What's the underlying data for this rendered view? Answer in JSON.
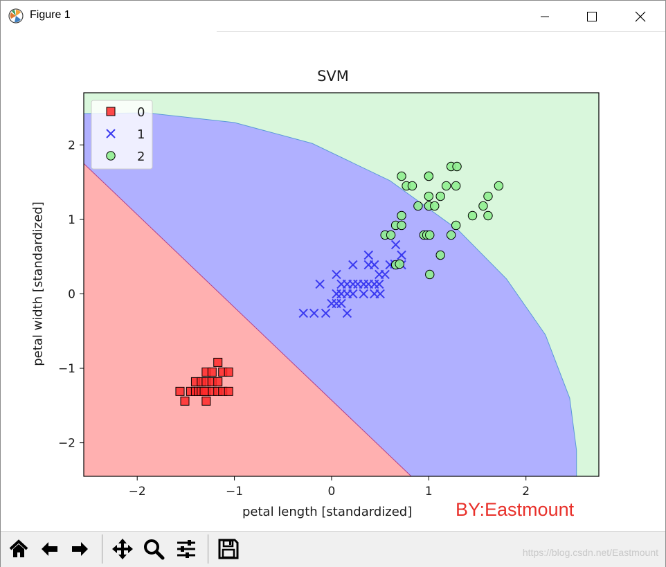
{
  "window": {
    "title": "Figure 1",
    "controls": [
      {
        "name": "minimize",
        "icon": "minimize-icon"
      },
      {
        "name": "maximize",
        "icon": "maximize-icon"
      },
      {
        "name": "close",
        "icon": "close-icon"
      }
    ]
  },
  "toolbar": {
    "buttons": [
      {
        "name": "home",
        "icon": "home-icon"
      },
      {
        "name": "back",
        "icon": "arrow-left-icon"
      },
      {
        "name": "forward",
        "icon": "arrow-right-icon"
      },
      {
        "name": "pan",
        "icon": "move-icon"
      },
      {
        "name": "zoom",
        "icon": "magnifier-icon"
      },
      {
        "name": "configure-subplots",
        "icon": "sliders-icon"
      },
      {
        "name": "save",
        "icon": "floppy-disk-icon"
      }
    ]
  },
  "watermarks": {
    "author": "BY:Eastmount",
    "url": "https://blog.csdn.net/Eastmount"
  },
  "chart_data": {
    "type": "scatter",
    "title": "SVM",
    "xlabel": "petal length [standardized]",
    "ylabel": "petal width [standardized]",
    "xlim": [
      -2.55,
      2.75
    ],
    "ylim": [
      -2.45,
      2.7
    ],
    "xticks": [
      -2,
      -1,
      0,
      1,
      2
    ],
    "xtick_labels": [
      "−2",
      "−1",
      "0",
      "1",
      "2"
    ],
    "yticks": [
      -2,
      -1,
      0,
      1,
      2
    ],
    "ytick_labels": [
      "−2",
      "−1",
      "0",
      "1",
      "2"
    ],
    "legend": {
      "location": "top-left",
      "entries": [
        "0",
        "1",
        "2"
      ]
    },
    "colors": {
      "class0": "#ff2a2a",
      "class1": "#3a3af0",
      "class2": "#90ee90",
      "region0": "#ffb0b0",
      "region1": "#b0b0ff",
      "region2": "#d9f7dc"
    },
    "decision_regions": [
      {
        "class": "0",
        "boundary": [
          [
            -2.55,
            1.75
          ],
          [
            0.82,
            -2.45
          ]
        ]
      },
      {
        "class": "1",
        "boundary": [
          [
            -2.55,
            2.42
          ],
          [
            -1.9,
            2.43
          ],
          [
            -1.0,
            2.3
          ],
          [
            -0.2,
            2.02
          ],
          [
            0.6,
            1.52
          ],
          [
            1.3,
            0.86
          ],
          [
            1.8,
            0.2
          ],
          [
            2.2,
            -0.55
          ],
          [
            2.45,
            -1.4
          ],
          [
            2.52,
            -2.1
          ],
          [
            2.52,
            -2.45
          ]
        ]
      },
      {
        "class": "2",
        "boundary": "remainder"
      }
    ],
    "series": [
      {
        "name": "0",
        "marker": "square",
        "points": [
          [
            -1.56,
            -1.31
          ],
          [
            -1.51,
            -1.44
          ],
          [
            -1.45,
            -1.31
          ],
          [
            -1.4,
            -1.31
          ],
          [
            -1.4,
            -1.18
          ],
          [
            -1.37,
            -1.31
          ],
          [
            -1.34,
            -1.31
          ],
          [
            -1.34,
            -1.18
          ],
          [
            -1.29,
            -1.31
          ],
          [
            -1.29,
            -1.18
          ],
          [
            -1.29,
            -1.05
          ],
          [
            -1.29,
            -1.44
          ],
          [
            -1.23,
            -1.31
          ],
          [
            -1.23,
            -1.18
          ],
          [
            -1.23,
            -1.05
          ],
          [
            -1.17,
            -1.31
          ],
          [
            -1.17,
            -1.18
          ],
          [
            -1.12,
            -1.31
          ],
          [
            -1.12,
            -1.05
          ],
          [
            -1.17,
            -0.92
          ],
          [
            -1.06,
            -1.31
          ],
          [
            -1.06,
            -1.05
          ],
          [
            -1.31,
            -1.31
          ]
        ]
      },
      {
        "name": "1",
        "marker": "x",
        "points": [
          [
            -0.29,
            -0.26
          ],
          [
            -0.18,
            -0.26
          ],
          [
            -0.12,
            0.13
          ],
          [
            -0.06,
            -0.26
          ],
          [
            0.0,
            -0.13
          ],
          [
            0.05,
            -0.13
          ],
          [
            0.05,
            0.0
          ],
          [
            0.05,
            0.26
          ],
          [
            0.1,
            -0.13
          ],
          [
            0.1,
            0.0
          ],
          [
            0.1,
            0.13
          ],
          [
            0.16,
            0.13
          ],
          [
            0.16,
            0.0
          ],
          [
            0.16,
            -0.26
          ],
          [
            0.22,
            0.13
          ],
          [
            0.22,
            0.39
          ],
          [
            0.22,
            0.0
          ],
          [
            0.27,
            0.13
          ],
          [
            0.33,
            0.13
          ],
          [
            0.33,
            0.0
          ],
          [
            0.38,
            0.13
          ],
          [
            0.38,
            0.39
          ],
          [
            0.38,
            0.52
          ],
          [
            0.44,
            0.13
          ],
          [
            0.44,
            0.0
          ],
          [
            0.44,
            0.39
          ],
          [
            0.49,
            0.13
          ],
          [
            0.49,
            0.26
          ],
          [
            0.5,
            0.0
          ],
          [
            0.55,
            0.26
          ],
          [
            0.6,
            0.39
          ],
          [
            0.66,
            0.66
          ],
          [
            0.72,
            0.52
          ],
          [
            0.72,
            0.39
          ],
          [
            0.65,
            0.4
          ]
        ]
      },
      {
        "name": "2",
        "marker": "circle",
        "points": [
          [
            0.55,
            0.79
          ],
          [
            0.61,
            0.79
          ],
          [
            0.66,
            0.92
          ],
          [
            0.66,
            0.39
          ],
          [
            0.7,
            0.4
          ],
          [
            0.72,
            0.92
          ],
          [
            0.72,
            1.05
          ],
          [
            0.72,
            1.58
          ],
          [
            0.77,
            1.45
          ],
          [
            0.83,
            1.45
          ],
          [
            0.89,
            1.18
          ],
          [
            0.95,
            0.79
          ],
          [
            0.98,
            0.79
          ],
          [
            1.0,
            1.58
          ],
          [
            1.0,
            1.58
          ],
          [
            1.0,
            1.31
          ],
          [
            1.0,
            1.18
          ],
          [
            1.01,
            0.79
          ],
          [
            1.01,
            0.26
          ],
          [
            1.06,
            1.18
          ],
          [
            1.12,
            1.31
          ],
          [
            1.12,
            0.52
          ],
          [
            1.18,
            1.45
          ],
          [
            1.23,
            0.79
          ],
          [
            1.23,
            1.71
          ],
          [
            1.28,
            1.45
          ],
          [
            1.28,
            0.92
          ],
          [
            1.29,
            1.71
          ],
          [
            1.45,
            1.05
          ],
          [
            1.56,
            1.18
          ],
          [
            1.61,
            1.31
          ],
          [
            1.61,
            1.05
          ],
          [
            1.72,
            1.45
          ]
        ]
      }
    ]
  }
}
